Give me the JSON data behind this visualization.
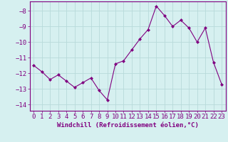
{
  "x": [
    0,
    1,
    2,
    3,
    4,
    5,
    6,
    7,
    8,
    9,
    10,
    11,
    12,
    13,
    14,
    15,
    16,
    17,
    18,
    19,
    20,
    21,
    22,
    23
  ],
  "y": [
    -11.5,
    -11.9,
    -12.4,
    -12.1,
    -12.5,
    -12.9,
    -12.6,
    -12.3,
    -13.1,
    -13.7,
    -11.4,
    -11.2,
    -10.5,
    -9.8,
    -9.2,
    -7.7,
    -8.3,
    -9.0,
    -8.6,
    -9.1,
    -10.0,
    -9.1,
    -11.3,
    -12.7
  ],
  "line_color": "#800080",
  "marker": "D",
  "marker_size": 2,
  "bg_color": "#d6f0f0",
  "grid_color": "#b8dada",
  "xlabel": "Windchill (Refroidissement éolien,°C)",
  "xlabel_fontsize": 6.5,
  "tick_fontsize": 6.5,
  "xlim": [
    -0.5,
    23.5
  ],
  "ylim": [
    -14.4,
    -7.4
  ],
  "yticks": [
    -14,
    -13,
    -12,
    -11,
    -10,
    -9,
    -8
  ],
  "xticks": [
    0,
    1,
    2,
    3,
    4,
    5,
    6,
    7,
    8,
    9,
    10,
    11,
    12,
    13,
    14,
    15,
    16,
    17,
    18,
    19,
    20,
    21,
    22,
    23
  ]
}
